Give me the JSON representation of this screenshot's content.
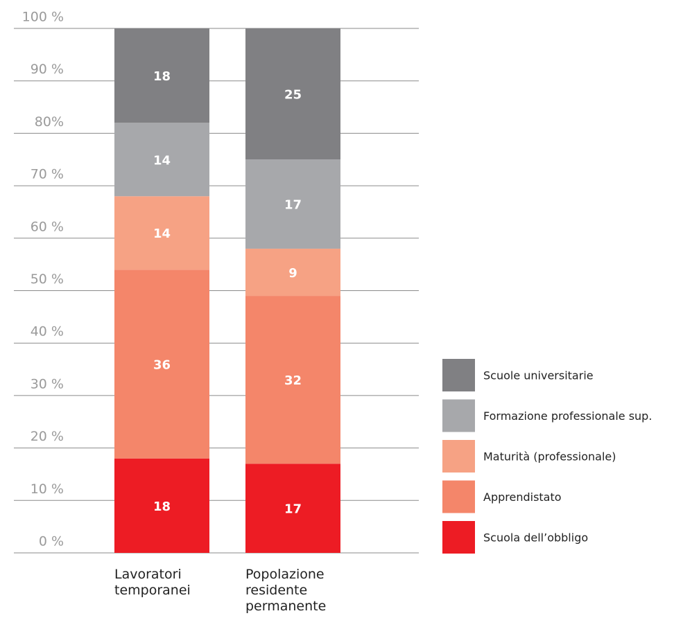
{
  "chart_data": {
    "type": "stacked_bar",
    "categories": [
      "Lavoratori temporanei",
      "Popolazione residente permanente"
    ],
    "series": [
      {
        "name": "Scuola dell’obbligo",
        "color": "#ed1c24",
        "values": [
          18,
          17
        ]
      },
      {
        "name": "Apprendistato",
        "color": "#f4866a",
        "values": [
          36,
          32
        ]
      },
      {
        "name": "Maturità (professionale)",
        "color": "#f6a284",
        "values": [
          14,
          9
        ]
      },
      {
        "name": "Formazione professionale sup.",
        "color": "#a7a8ab",
        "values": [
          14,
          17
        ]
      },
      {
        "name": "Scuole universitarie",
        "color": "#808083",
        "values": [
          18,
          25
        ]
      }
    ],
    "ylim": [
      0,
      100
    ],
    "yticks": [
      {
        "value": 0,
        "label": "0 %"
      },
      {
        "value": 10,
        "label": "10 %"
      },
      {
        "value": 20,
        "label": "20 %"
      },
      {
        "value": 30,
        "label": "30 %"
      },
      {
        "value": 40,
        "label": "40 %"
      },
      {
        "value": 50,
        "label": "50 %"
      },
      {
        "value": 60,
        "label": "60 %"
      },
      {
        "value": 70,
        "label": "70 %"
      },
      {
        "value": 80,
        "label": "80%"
      },
      {
        "value": 90,
        "label": "90 %"
      },
      {
        "value": 100,
        "label": "100 %"
      }
    ],
    "grid": true,
    "legend": "right"
  }
}
